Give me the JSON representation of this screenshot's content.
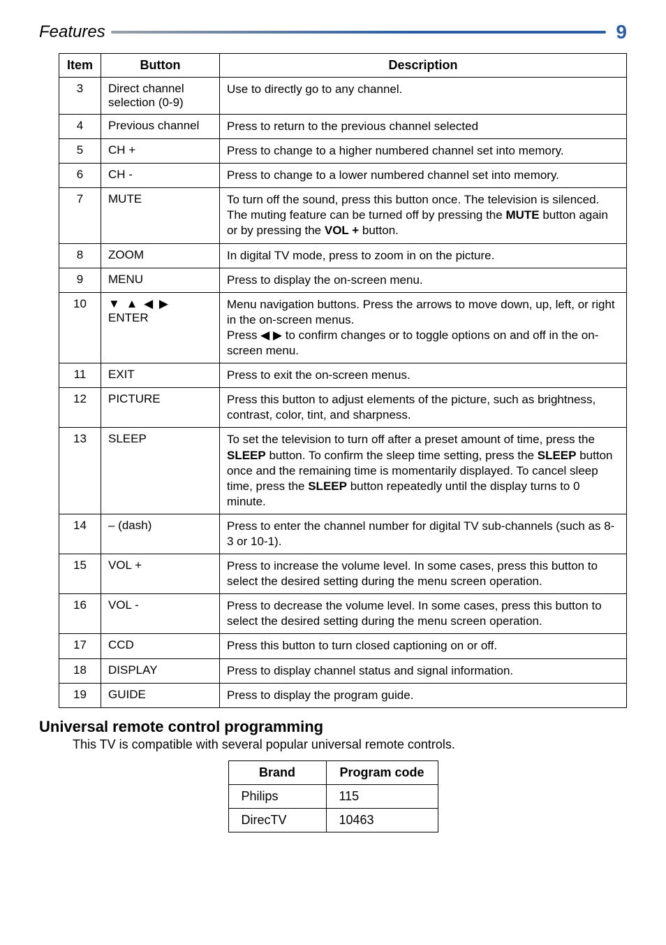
{
  "header": {
    "title": "Features",
    "page_number": "9",
    "rule_gradient_start": "#9aa0a6",
    "rule_gradient_end": "#2b5ea3"
  },
  "main_table": {
    "columns": [
      "Item",
      "Button",
      "Description"
    ],
    "rows": [
      {
        "item": "3",
        "button": "Direct channel selection (0-9)",
        "desc": "Use to directly go to any channel."
      },
      {
        "item": "4",
        "button": "Previous channel",
        "desc": "Press to return to the previous channel selected"
      },
      {
        "item": "5",
        "button": "CH +",
        "desc": "Press to change to a higher numbered channel set into memory."
      },
      {
        "item": "6",
        "button": "CH -",
        "desc": "Press to change to a lower numbered channel set into memory."
      },
      {
        "item": "7",
        "button": "MUTE",
        "desc_html": "To turn off the sound, press this button once. The television is silenced. The muting feature can be turned off by pressing the <b>MUTE</b> button again or by pressing the <b>VOL +</b> button."
      },
      {
        "item": "8",
        "button": "ZOOM",
        "desc": "In digital TV mode, press to zoom in on the picture."
      },
      {
        "item": "9",
        "button": "MENU",
        "desc": "Press to display the on-screen menu."
      },
      {
        "item": "10",
        "button_html": "<span class=\"glyph-row\">▼ ▲ ◀ ▶</span><br>ENTER",
        "desc_html": "Menu navigation buttons. Press the arrows to move down, up, left, or right in the on-screen menus.<br>Press ◀ ▶ to confirm changes or to toggle options on and off in the on-screen menu."
      },
      {
        "item": "11",
        "button": "EXIT",
        "desc": "Press to exit the on-screen menus."
      },
      {
        "item": "12",
        "button": "PICTURE",
        "desc": "Press this button to adjust elements of the picture, such as brightness, contrast, color, tint, and sharpness."
      },
      {
        "item": "13",
        "button": "SLEEP",
        "desc_html": "To set the television to turn off after a preset amount of time, press the <b>SLEEP</b> button. To confirm the sleep time setting, press the <b>SLEEP</b> button once and the remaining time is momentarily displayed. To cancel sleep time, press the <b>SLEEP</b> button repeatedly until the display turns to 0 minute."
      },
      {
        "item": "14",
        "button": "– (dash)",
        "desc": "Press to enter the channel number for digital TV sub-channels (such as 8-3 or 10-1)."
      },
      {
        "item": "15",
        "button": "VOL +",
        "desc": "Press to increase the volume level. In some cases, press this button to select the desired setting during the menu screen operation."
      },
      {
        "item": "16",
        "button": "VOL -",
        "desc": "Press to decrease the volume level. In some cases, press this button to select the desired setting during the menu screen operation."
      },
      {
        "item": "17",
        "button": "CCD",
        "desc": "Press this button to turn closed captioning on or off."
      },
      {
        "item": "18",
        "button": "DISPLAY",
        "desc": "Press to display channel status and signal information."
      },
      {
        "item": "19",
        "button": "GUIDE",
        "desc": "Press to display the program guide."
      }
    ]
  },
  "section": {
    "heading": "Universal remote control programming",
    "subtext": "This TV is compatible with several popular universal remote controls."
  },
  "codes_table": {
    "columns": [
      "Brand",
      "Program code"
    ],
    "rows": [
      {
        "brand": "Philips",
        "code": "115"
      },
      {
        "brand": "DirecTV",
        "code": "10463"
      }
    ]
  }
}
